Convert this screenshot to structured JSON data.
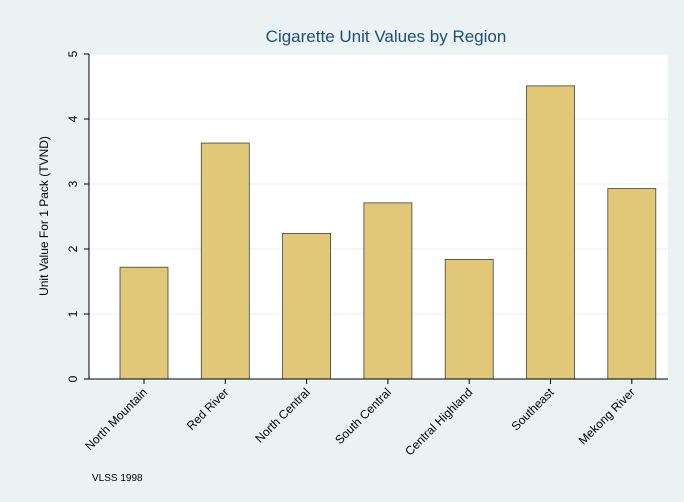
{
  "chart_data": {
    "type": "bar",
    "title": "Cigarette Unit Values by Region",
    "ylabel": "Unit Value For 1 Pack (TVND)",
    "xlabel": "",
    "categories": [
      "North Mountain",
      "Red River",
      "North Central",
      "South Central",
      "Central Highland",
      "Southeast",
      "Mekong River"
    ],
    "values": [
      1.72,
      3.63,
      2.24,
      2.71,
      1.84,
      4.51,
      2.93
    ],
    "ylim": [
      0,
      5
    ],
    "yticks": [
      0,
      1,
      2,
      3,
      4,
      5
    ],
    "grid": true,
    "legend": "none",
    "note": "VLSS 1998",
    "colors": {
      "background": "#eaf2f3",
      "plot_area": "#ffffff",
      "bar_fill": "#e0c878",
      "bar_stroke": "#404040",
      "gridline": "#e8eef0",
      "title": "#1f4e79"
    }
  }
}
